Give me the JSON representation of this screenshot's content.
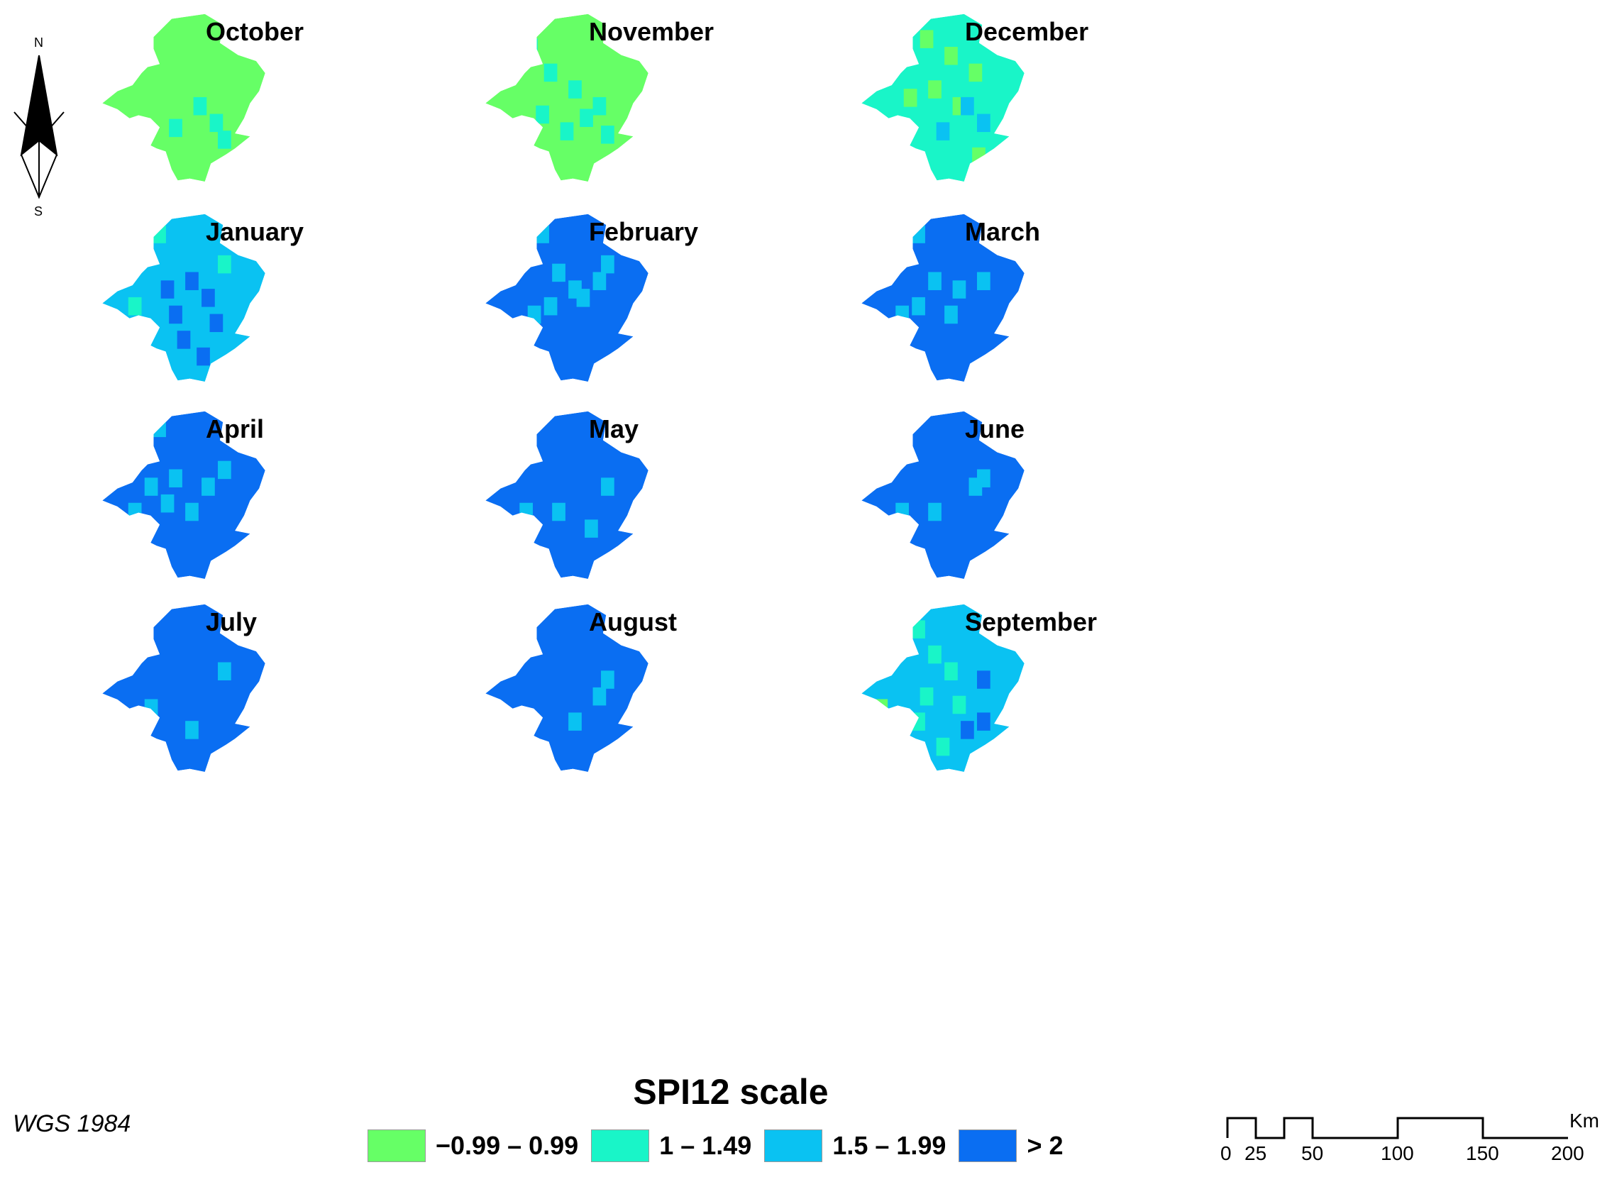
{
  "figure": {
    "legend_title": "SPI12 scale",
    "datum": "WGS 1984"
  },
  "north_arrow": {
    "north": "N",
    "south": "S",
    "icon": "north-arrow-icon"
  },
  "legend": [
    {
      "label": "−0.99 – 0.99",
      "color": "#66ff66"
    },
    {
      "label": "1 – 1.49",
      "color": "#19f5c8"
    },
    {
      "label": "1.5 – 1.99",
      "color": "#0ac2f2"
    },
    {
      "label": "> 2",
      "color": "#0a6ef2"
    }
  ],
  "scale_bar": {
    "unit": "Km",
    "ticks": [
      "0",
      "25",
      "50",
      "100",
      "150",
      "200"
    ]
  },
  "panels": [
    {
      "month": "October",
      "base_class": 0,
      "patches": [
        [
          1,
          0.6,
          0.55
        ],
        [
          1,
          0.7,
          0.65
        ],
        [
          1,
          0.45,
          0.68
        ],
        [
          1,
          0.75,
          0.75
        ]
      ]
    },
    {
      "month": "November",
      "base_class": 0,
      "patches": [
        [
          1,
          0.4,
          0.35
        ],
        [
          1,
          0.55,
          0.45
        ],
        [
          1,
          0.7,
          0.55
        ],
        [
          1,
          0.35,
          0.6
        ],
        [
          1,
          0.62,
          0.62
        ],
        [
          1,
          0.5,
          0.7
        ],
        [
          1,
          0.75,
          0.72
        ],
        [
          1,
          0.28,
          0.2
        ]
      ]
    },
    {
      "month": "December",
      "base_class": 1,
      "patches": [
        [
          0,
          0.4,
          0.15
        ],
        [
          0,
          0.55,
          0.25
        ],
        [
          0,
          0.7,
          0.35
        ],
        [
          0,
          0.45,
          0.45
        ],
        [
          0,
          0.6,
          0.55
        ],
        [
          2,
          0.65,
          0.55
        ],
        [
          2,
          0.75,
          0.65
        ],
        [
          2,
          0.5,
          0.7
        ],
        [
          0,
          0.72,
          0.85
        ],
        [
          0,
          0.3,
          0.5
        ]
      ]
    },
    {
      "month": "January",
      "base_class": 2,
      "patches": [
        [
          1,
          0.35,
          0.12
        ],
        [
          3,
          0.55,
          0.4
        ],
        [
          3,
          0.65,
          0.5
        ],
        [
          3,
          0.45,
          0.6
        ],
        [
          3,
          0.7,
          0.65
        ],
        [
          3,
          0.5,
          0.75
        ],
        [
          3,
          0.62,
          0.85
        ],
        [
          1,
          0.2,
          0.55
        ],
        [
          1,
          0.75,
          0.3
        ],
        [
          3,
          0.4,
          0.45
        ]
      ]
    },
    {
      "month": "February",
      "base_class": 3,
      "patches": [
        [
          2,
          0.35,
          0.12
        ],
        [
          2,
          0.45,
          0.35
        ],
        [
          2,
          0.55,
          0.45
        ],
        [
          2,
          0.7,
          0.4
        ],
        [
          2,
          0.4,
          0.55
        ],
        [
          2,
          0.6,
          0.5
        ],
        [
          2,
          0.3,
          0.6
        ],
        [
          2,
          0.75,
          0.3
        ]
      ]
    },
    {
      "month": "March",
      "base_class": 3,
      "patches": [
        [
          2,
          0.35,
          0.12
        ],
        [
          2,
          0.45,
          0.4
        ],
        [
          2,
          0.6,
          0.45
        ],
        [
          2,
          0.75,
          0.4
        ],
        [
          2,
          0.35,
          0.55
        ],
        [
          2,
          0.55,
          0.6
        ],
        [
          2,
          0.25,
          0.6
        ]
      ]
    },
    {
      "month": "April",
      "base_class": 3,
      "patches": [
        [
          2,
          0.35,
          0.1
        ],
        [
          2,
          0.45,
          0.4
        ],
        [
          2,
          0.75,
          0.35
        ],
        [
          2,
          0.65,
          0.45
        ],
        [
          2,
          0.4,
          0.55
        ],
        [
          2,
          0.55,
          0.6
        ],
        [
          2,
          0.2,
          0.6
        ],
        [
          2,
          0.3,
          0.45
        ]
      ]
    },
    {
      "month": "May",
      "base_class": 3,
      "patches": [
        [
          2,
          0.75,
          0.45
        ],
        [
          2,
          0.45,
          0.6
        ],
        [
          2,
          0.25,
          0.6
        ],
        [
          2,
          0.65,
          0.7
        ]
      ]
    },
    {
      "month": "June",
      "base_class": 3,
      "patches": [
        [
          2,
          0.75,
          0.4
        ],
        [
          2,
          0.45,
          0.6
        ],
        [
          2,
          0.25,
          0.6
        ],
        [
          2,
          0.7,
          0.45
        ]
      ]
    },
    {
      "month": "July",
      "base_class": 3,
      "patches": [
        [
          2,
          0.75,
          0.4
        ],
        [
          2,
          0.55,
          0.75
        ],
        [
          2,
          0.3,
          0.62
        ]
      ]
    },
    {
      "month": "August",
      "base_class": 3,
      "patches": [
        [
          2,
          0.75,
          0.45
        ],
        [
          2,
          0.55,
          0.7
        ],
        [
          2,
          0.7,
          0.55
        ]
      ]
    },
    {
      "month": "September",
      "base_class": 2,
      "patches": [
        [
          1,
          0.35,
          0.15
        ],
        [
          1,
          0.45,
          0.3
        ],
        [
          1,
          0.55,
          0.4
        ],
        [
          1,
          0.4,
          0.55
        ],
        [
          1,
          0.6,
          0.6
        ],
        [
          1,
          0.35,
          0.7
        ],
        [
          0,
          0.12,
          0.62
        ],
        [
          3,
          0.75,
          0.45
        ],
        [
          3,
          0.65,
          0.75
        ],
        [
          3,
          0.75,
          0.7
        ],
        [
          1,
          0.5,
          0.85
        ]
      ]
    }
  ]
}
